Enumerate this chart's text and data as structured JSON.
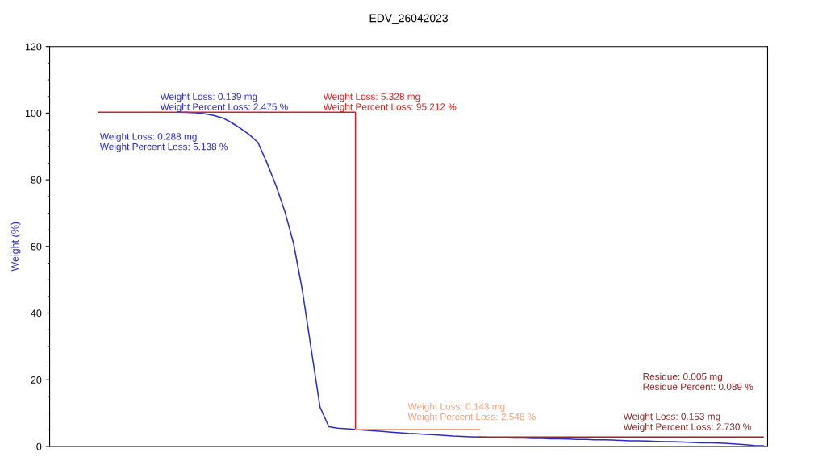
{
  "chart_data": {
    "type": "line",
    "title": "EDV_26042023",
    "ylabel": "Weight (%)",
    "categories": [
      null,
      null,
      null,
      null,
      null,
      null,
      null,
      null,
      null,
      null,
      null,
      null,
      null,
      null,
      null,
      null,
      null,
      null,
      null,
      null,
      null,
      null,
      null,
      null,
      null,
      null,
      null,
      null,
      null,
      null,
      null,
      null,
      null,
      null,
      null,
      null,
      null,
      null,
      null,
      null,
      null,
      null,
      null,
      null,
      null,
      null,
      null,
      null,
      null,
      null,
      null,
      null,
      null,
      null,
      null,
      null,
      null,
      null,
      null,
      null,
      null,
      null,
      null,
      null,
      null,
      null,
      null,
      null,
      null,
      null,
      null,
      null,
      null,
      null,
      null,
      null,
      null,
      null,
      null,
      null,
      null
    ],
    "series": [
      {
        "color": "#2a2ac8",
        "values": [
          null,
          null,
          null,
          null,
          null,
          null,
          null,
          null,
          null,
          null,
          null,
          null,
          null,
          null,
          100.3,
          100.2,
          100.1,
          99.8,
          99.3,
          98.6,
          97.2,
          95.5,
          93.6,
          91.2,
          85.2,
          78.5,
          70.8,
          61.1,
          47.0,
          29.3,
          11.8,
          5.9,
          5.5,
          5.3,
          5.1,
          4.9,
          4.7,
          4.5,
          4.3,
          4.1,
          3.9,
          3.8,
          3.6,
          3.5,
          3.3,
          3.1,
          3.0,
          2.9,
          2.8,
          2.7,
          2.7,
          2.6,
          2.5,
          2.5,
          2.4,
          2.4,
          2.3,
          2.3,
          2.2,
          2.1,
          2.1,
          2.0,
          2.0,
          1.9,
          1.8,
          1.7,
          1.7,
          1.6,
          1.5,
          1.4,
          1.4,
          1.3,
          1.2,
          1.1,
          1.1,
          1.0,
          0.9,
          0.7,
          0.5,
          0.3,
          0.2
        ]
      },
      {
        "type": "step",
        "color": "#d42020",
        "values": [
          null,
          null,
          null,
          null,
          null,
          100.3,
          100.3,
          100.3,
          100.3,
          100.3,
          100.3,
          100.3,
          100.3,
          100.3,
          100.3,
          100.3,
          100.3,
          100.3,
          100.3,
          100.3,
          100.3,
          100.3,
          100.3,
          100.3,
          100.3,
          100.3,
          100.3,
          100.3,
          100.3,
          100.3,
          100.3,
          100.3,
          100.3,
          100.3,
          5.1,
          null,
          null,
          null,
          null,
          null,
          null,
          null,
          null,
          null,
          null,
          null,
          null,
          null,
          null,
          null,
          null,
          null,
          null,
          null,
          null,
          null,
          null,
          null,
          null,
          null,
          null,
          null,
          null,
          null,
          null,
          null,
          null,
          null,
          null,
          null,
          null,
          null,
          null,
          null,
          null,
          null,
          null,
          null,
          null,
          null,
          null
        ]
      },
      {
        "color": "#f0a07a",
        "values": [
          null,
          null,
          null,
          null,
          null,
          null,
          null,
          null,
          null,
          null,
          null,
          null,
          null,
          null,
          null,
          null,
          null,
          null,
          null,
          null,
          null,
          null,
          null,
          null,
          null,
          null,
          null,
          null,
          null,
          null,
          null,
          null,
          null,
          null,
          5.1,
          5.1,
          5.1,
          5.1,
          5.1,
          5.1,
          5.1,
          5.1,
          5.1,
          5.1,
          5.1,
          5.1,
          5.1,
          5.1,
          5.1,
          null,
          null,
          null,
          null,
          null,
          null,
          null,
          null,
          null,
          null,
          null,
          null,
          null,
          null,
          null,
          null,
          null,
          null,
          null,
          null,
          null,
          null,
          null,
          null,
          null,
          null,
          null,
          null,
          null,
          null,
          null,
          null
        ]
      },
      {
        "color": "#8b2a2a",
        "values": [
          null,
          null,
          null,
          null,
          null,
          null,
          null,
          null,
          null,
          null,
          null,
          null,
          null,
          null,
          null,
          null,
          null,
          null,
          null,
          null,
          null,
          null,
          null,
          null,
          null,
          null,
          null,
          null,
          null,
          null,
          null,
          null,
          null,
          null,
          null,
          null,
          null,
          null,
          null,
          null,
          null,
          null,
          null,
          null,
          null,
          null,
          null,
          null,
          2.8,
          2.8,
          2.8,
          2.8,
          2.8,
          2.8,
          2.8,
          2.8,
          2.8,
          2.8,
          2.8,
          2.8,
          2.8,
          2.8,
          2.8,
          2.8,
          2.8,
          2.8,
          2.8,
          2.8,
          2.8,
          2.8,
          2.8,
          2.8,
          2.8,
          2.8,
          2.8,
          2.8,
          2.8,
          2.8,
          2.8,
          2.8,
          2.8
        ]
      }
    ],
    "ylim": [
      0,
      120
    ],
    "yticks": [
      0,
      20,
      40,
      60,
      80,
      100,
      120
    ],
    "tick_labels": "y",
    "grid": false,
    "legend": false,
    "annotations": [
      "Weight Loss: 0.139 mg\nWeight Percent Loss: 2.475 %",
      "Weight Loss: 0.288 mg\nWeight Percent Loss: 5.138 %",
      "Weight Loss: 5.328 mg\nWeight Percent Loss: 95.212 %",
      "Weight Loss: 0.143 mg\nWeight Percent Loss: 2.548 %",
      "Residue: 0.005 mg\nResidue Percent: 0.089 %",
      "Weight Loss: 0.153 mg\nWeight Percent Loss: 2.730 %"
    ]
  }
}
